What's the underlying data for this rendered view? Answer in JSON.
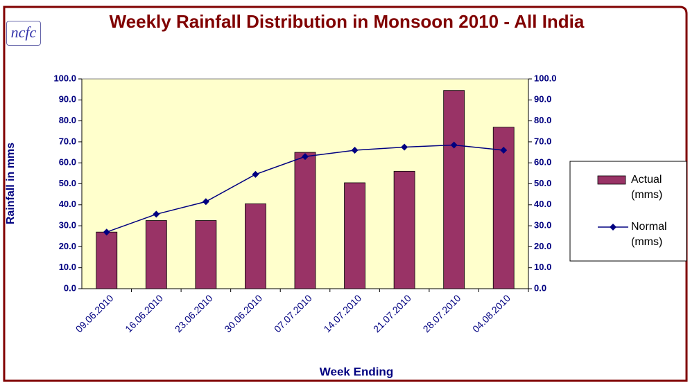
{
  "logo": "ncfc",
  "chart_data": {
    "type": "bar-line",
    "title": "Weekly Rainfall Distribution in Monsoon 2010 - All India",
    "y_label": "Rainfall in mms",
    "x_label": "Week Ending",
    "categories": [
      "09.06.2010",
      "16.06.2010",
      "23.06.2010",
      "30.06.2010",
      "07.07.2010",
      "14.07.2010",
      "21.07.2010",
      "28.07.2010",
      "04.08.2010"
    ],
    "series": [
      {
        "name": "Actual (mms)",
        "type": "bar",
        "color": "#993366",
        "values": [
          27,
          32.5,
          32.5,
          40.5,
          65,
          50.5,
          56,
          94.5,
          77
        ]
      },
      {
        "name": "Normal (mms)",
        "type": "line",
        "axis": "y2",
        "color": "#000080",
        "values": [
          27,
          35.5,
          41.5,
          54.5,
          63,
          66,
          67.5,
          68.5,
          66
        ]
      }
    ],
    "ylim": [
      0,
      100
    ],
    "yticks": [
      {
        "value": 0,
        "label": "0.0"
      },
      {
        "value": 10,
        "label": "10.0"
      },
      {
        "value": 20,
        "label": "20.0"
      },
      {
        "value": 30,
        "label": "30.0"
      },
      {
        "value": 40,
        "label": "40.0"
      },
      {
        "value": 50,
        "label": "50.0"
      },
      {
        "value": 60,
        "label": "60.0"
      },
      {
        "value": 70,
        "label": "70.0"
      },
      {
        "value": 80,
        "label": "80.0"
      },
      {
        "value": 90,
        "label": "90.0"
      },
      {
        "value": 100,
        "label": "100.0"
      }
    ],
    "y2lim": [
      0,
      100
    ],
    "y2ticks": [
      {
        "value": 0,
        "label": "0.0"
      },
      {
        "value": 10,
        "label": "10.0"
      },
      {
        "value": 20,
        "label": "20.0"
      },
      {
        "value": 30,
        "label": "30.0"
      },
      {
        "value": 40,
        "label": "40.0"
      },
      {
        "value": 50,
        "label": "50.0"
      },
      {
        "value": 60,
        "label": "60.0"
      },
      {
        "value": 70,
        "label": "70.0"
      },
      {
        "value": 80,
        "label": "80.0"
      },
      {
        "value": 90,
        "label": "90.0"
      },
      {
        "value": 100,
        "label": "100.0"
      }
    ],
    "plot_background": "#ffffcc",
    "legend": "right"
  }
}
